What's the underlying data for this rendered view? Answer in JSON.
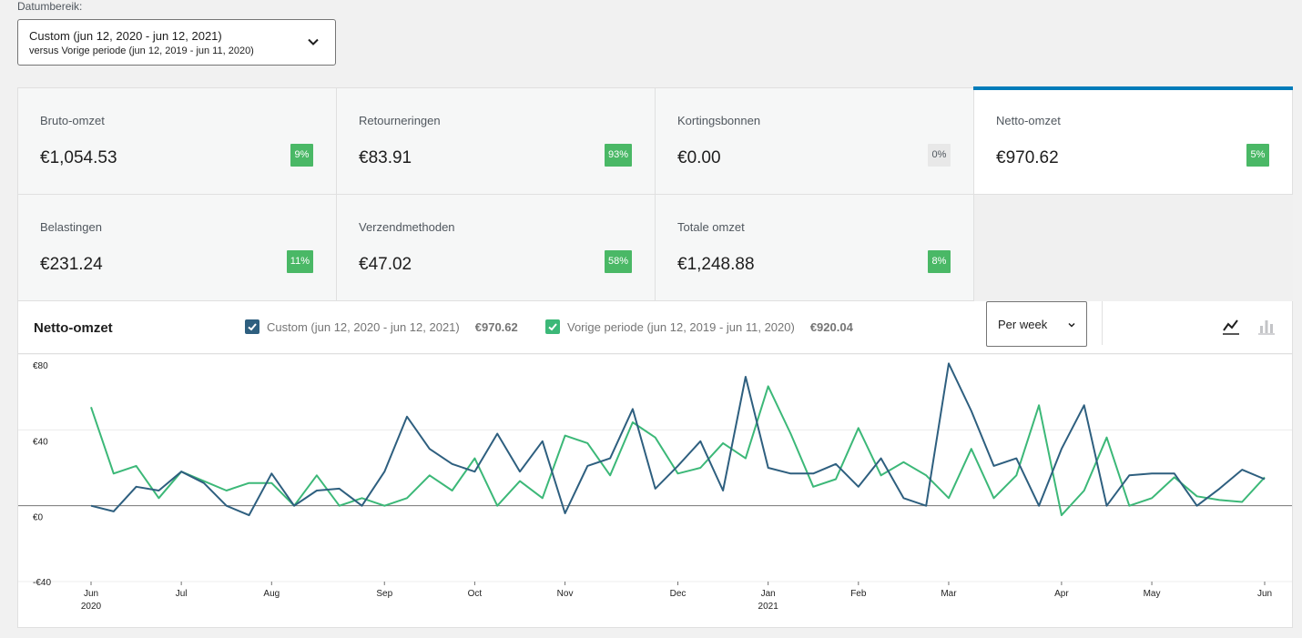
{
  "date_range": {
    "label": "Datumbereik:",
    "primary": "Custom (jun 12, 2020 - jun 12, 2021)",
    "secondary": "versus Vorige periode (jun 12, 2019 - jun 11, 2020)"
  },
  "summary": [
    {
      "label": "Bruto-omzet",
      "value": "€1,054.53",
      "delta": "9%",
      "selected": false
    },
    {
      "label": "Retourneringen",
      "value": "€83.91",
      "delta": "93%",
      "selected": false
    },
    {
      "label": "Kortingsbonnen",
      "value": "€0.00",
      "delta": "0%",
      "selected": false
    },
    {
      "label": "Netto-omzet",
      "value": "€970.62",
      "delta": "5%",
      "selected": true
    },
    {
      "label": "Belastingen",
      "value": "€231.24",
      "delta": "11%",
      "selected": false
    },
    {
      "label": "Verzendmethoden",
      "value": "€47.02",
      "delta": "58%",
      "selected": false
    },
    {
      "label": "Totale omzet",
      "value": "€1,248.88",
      "delta": "8%",
      "selected": false
    }
  ],
  "chart": {
    "title": "Netto-omzet",
    "legend": [
      {
        "label": "Custom (jun 12, 2020 - jun 12, 2021)",
        "total": "€970.62",
        "color": "#2e5f7f"
      },
      {
        "label": "Vorige periode (jun 12, 2019 - jun 11, 2020)",
        "total": "€920.04",
        "color": "#3cb878"
      }
    ],
    "interval": "Per week"
  },
  "colors": {
    "accent": "#007cba",
    "positive": "#4ab866",
    "current": "#2e5f7f",
    "previous": "#3cb878"
  },
  "chart_data": {
    "type": "line",
    "ylim": [
      -40,
      80
    ],
    "y_ticks": [
      {
        "value": 80,
        "label": "€80"
      },
      {
        "value": 40,
        "label": "€40"
      },
      {
        "value": 0,
        "label": "€0"
      },
      {
        "value": -40,
        "label": "-€40"
      }
    ],
    "x_ticks": [
      {
        "week": 0,
        "label": "Jun",
        "sub": "2020"
      },
      {
        "week": 4,
        "label": "Jul",
        "sub": ""
      },
      {
        "week": 8,
        "label": "Aug",
        "sub": ""
      },
      {
        "week": 13,
        "label": "Sep",
        "sub": ""
      },
      {
        "week": 17,
        "label": "Oct",
        "sub": ""
      },
      {
        "week": 21,
        "label": "Nov",
        "sub": ""
      },
      {
        "week": 26,
        "label": "Dec",
        "sub": ""
      },
      {
        "week": 30,
        "label": "Jan",
        "sub": "2021"
      },
      {
        "week": 34,
        "label": "Feb",
        "sub": ""
      },
      {
        "week": 38,
        "label": "Mar",
        "sub": ""
      },
      {
        "week": 43,
        "label": "Apr",
        "sub": ""
      },
      {
        "week": 47,
        "label": "May",
        "sub": ""
      },
      {
        "week": 52,
        "label": "Jun",
        "sub": ""
      }
    ],
    "series": [
      {
        "name": "Custom (jun 12, 2020 - jun 12, 2021)",
        "values": [
          0,
          -3,
          10,
          8,
          18,
          12,
          0,
          -5,
          17,
          0,
          8,
          9,
          0,
          18,
          47,
          30,
          22,
          18,
          38,
          18,
          34,
          -4,
          21,
          25,
          51,
          9,
          21,
          34,
          8,
          68,
          20,
          17,
          17,
          22,
          10,
          25,
          4,
          0,
          75,
          50,
          21,
          25,
          0,
          30,
          53,
          0,
          16,
          17,
          17,
          0,
          9,
          19,
          14
        ]
      },
      {
        "name": "Vorige periode (jun 12, 2019 - jun 11, 2020)",
        "values": [
          52,
          17,
          21,
          4,
          18,
          13,
          8,
          12,
          12,
          0,
          16,
          0,
          4,
          0,
          4,
          16,
          8,
          25,
          0,
          13,
          4,
          37,
          33,
          16,
          44,
          36,
          17,
          20,
          33,
          25,
          63,
          38,
          10,
          14,
          41,
          16,
          23,
          16,
          4,
          30,
          4,
          16,
          53,
          -5,
          8,
          36,
          0,
          4,
          15,
          5,
          3,
          2,
          15
        ]
      }
    ]
  }
}
